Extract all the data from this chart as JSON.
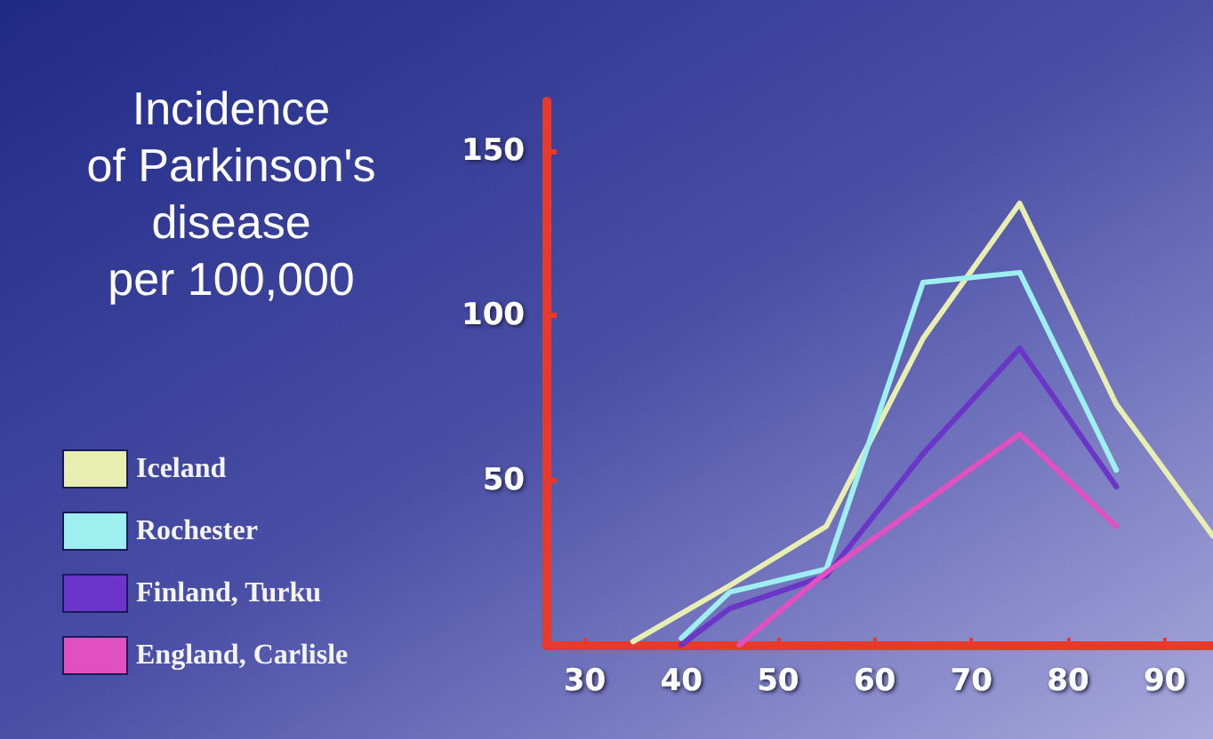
{
  "chart_data": {
    "type": "line",
    "title": "Incidence\nof Parkinson's\ndisease\nper 100,000",
    "xlim": [
      26,
      95
    ],
    "xticks": [
      30,
      40,
      50,
      60,
      70,
      80,
      90
    ],
    "ylim": [
      0,
      165
    ],
    "yticks": [
      50,
      100,
      150
    ],
    "grid": false,
    "legend": "left",
    "marker": "none",
    "line_style": "solid",
    "series": [
      {
        "name": "Iceland",
        "color": "#e8eeb0",
        "x": [
          35,
          45,
          55,
          65,
          75,
          85,
          95
        ],
        "values": [
          1,
          18,
          36,
          93,
          134,
          73,
          33
        ]
      },
      {
        "name": "Rochester",
        "color": "#9ef0f0",
        "x": [
          40,
          45,
          55,
          65,
          75,
          85
        ],
        "values": [
          2,
          16,
          23,
          110,
          113,
          53
        ]
      },
      {
        "name": "Finland, Turku",
        "color": "#6a35c8",
        "x": [
          40,
          45,
          55,
          65,
          75,
          85
        ],
        "values": [
          0,
          11,
          21,
          58,
          90,
          48
        ]
      },
      {
        "name": "England, Carlisle",
        "color": "#e050c0",
        "x": [
          46,
          55,
          75,
          85
        ],
        "values": [
          0,
          22,
          64,
          36
        ]
      }
    ]
  }
}
